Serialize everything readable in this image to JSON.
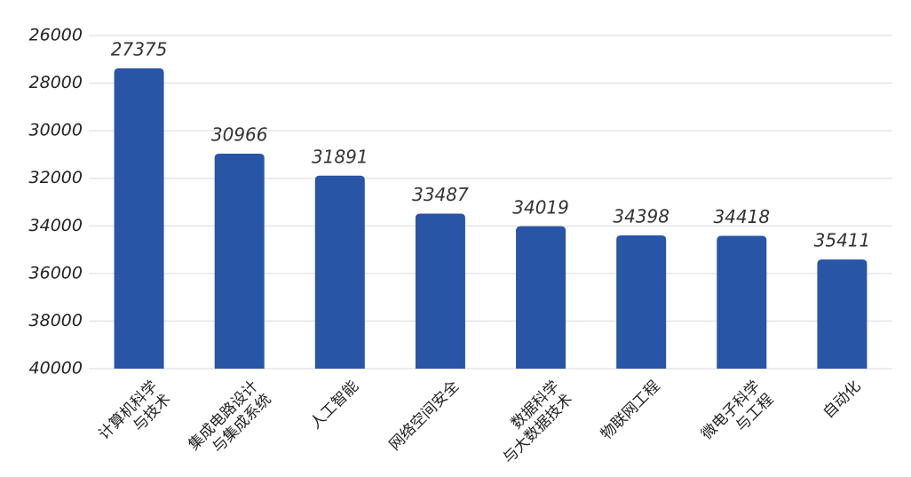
{
  "chart_data": {
    "type": "bar",
    "categories": [
      [
        "计算机科学",
        "与技术"
      ],
      [
        "集成电路设计",
        "与集成系统"
      ],
      [
        "人工智能"
      ],
      [
        "网络空间安全"
      ],
      [
        "数据科学",
        "与大数据技术"
      ],
      [
        "物联网工程"
      ],
      [
        "微电子科学",
        "与工程"
      ],
      [
        "自动化"
      ]
    ],
    "values": [
      27375,
      30966,
      31891,
      33487,
      34019,
      34398,
      34418,
      35411
    ],
    "color": "#2855a5",
    "ylim": [
      26000,
      40000
    ],
    "y_inverted": true,
    "yticks": [
      26000,
      28000,
      30000,
      32000,
      34000,
      36000,
      38000,
      40000
    ],
    "grid": true
  }
}
